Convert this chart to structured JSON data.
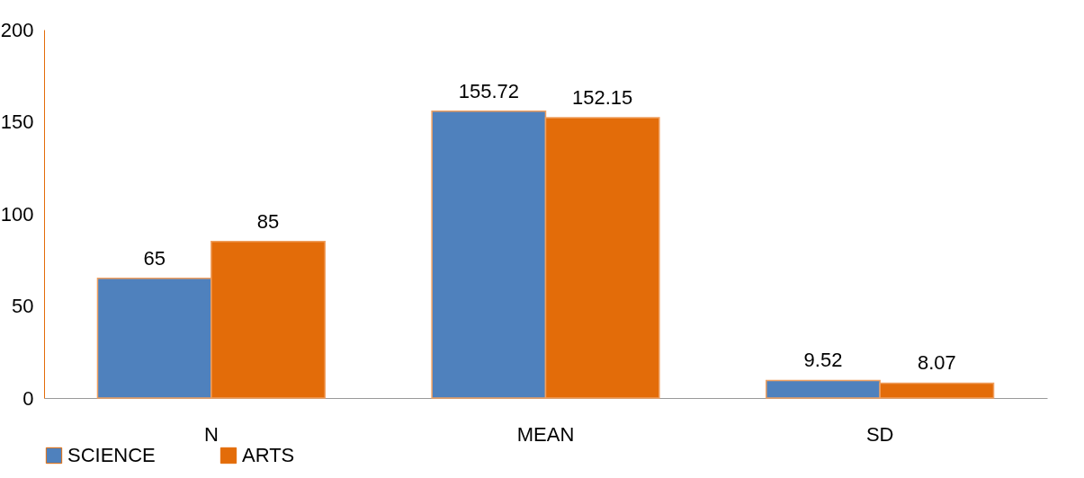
{
  "chart_data": {
    "type": "bar",
    "categories": [
      "N",
      "MEAN",
      "SD"
    ],
    "series": [
      {
        "name": "SCIENCE",
        "color": "#4f81bd",
        "values": [
          65,
          155.72,
          9.52
        ]
      },
      {
        "name": "ARTS",
        "color": "#e36c09",
        "values": [
          85,
          152.15,
          8.07
        ]
      }
    ],
    "ylim": [
      0,
      200
    ],
    "yticks": [
      0,
      50,
      100,
      150,
      200
    ],
    "grid": false,
    "legend": "bottom",
    "data_labels": true
  }
}
